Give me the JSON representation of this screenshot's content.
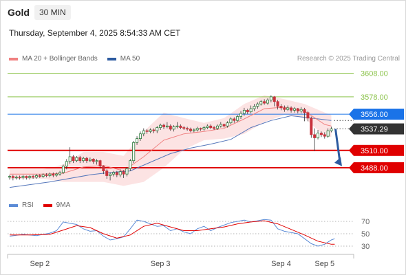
{
  "header": {
    "symbol": "Gold",
    "interval": "30 MIN",
    "datetime": "Thursday, September 4, 2025 8:54:33 AM CET"
  },
  "legend": {
    "items": [
      {
        "label": "MA 20 + Bollinger Bands",
        "color": "#f08080"
      },
      {
        "label": "MA 50",
        "color": "#2c5aa0"
      }
    ],
    "credit": "Research © 2025 Trading Central"
  },
  "rsi_legend": {
    "items": [
      {
        "label": "RSI",
        "color": "#5b8bd6"
      },
      {
        "label": "9MA",
        "color": "#e00000"
      }
    ]
  },
  "colors": {
    "target_green": "#8bc34a",
    "pivot_blue": "#1a73e8",
    "support_red": "#e00000",
    "candle_up": "#2a7a3a",
    "candle_down": "#c8323c",
    "bollinger_fill": "#fbdede",
    "ma20": "#f08080",
    "ma50": "#5577bb",
    "arrow": "#2c5aa0",
    "price_tag": "#333333"
  },
  "chart_data": {
    "type": "candlestick",
    "price_ylim": [
      3468,
      3630
    ],
    "levels": [
      {
        "value": 3608.0,
        "label": "3608.00",
        "kind": "resistance"
      },
      {
        "value": 3578.0,
        "label": "3578.00",
        "kind": "resistance"
      },
      {
        "value": 3556.0,
        "label": "3556.00",
        "kind": "pivot"
      },
      {
        "value": 3537.29,
        "label": "3537.29",
        "kind": "last"
      },
      {
        "value": 3510.0,
        "label": "3510.00",
        "kind": "support"
      },
      {
        "value": 3488.0,
        "label": "3488.00",
        "kind": "support"
      }
    ],
    "x_ticks": [
      "Sep 2",
      "Sep 3",
      "Sep 4",
      "Sep 5"
    ],
    "x_tick_bar_index": [
      9,
      45,
      81,
      94
    ],
    "candles": [
      [
        3476,
        3477,
        3475,
        3479,
        3473
      ],
      [
        3477,
        3475.5,
        3474,
        3479,
        3472
      ],
      [
        3475.5,
        3476,
        3474,
        3478,
        3473
      ],
      [
        3476,
        3475.5,
        3474.5,
        3478,
        3473
      ],
      [
        3475.5,
        3477,
        3475,
        3479,
        3473
      ],
      [
        3477,
        3475.5,
        3474,
        3478,
        3473
      ],
      [
        3475.5,
        3477,
        3474.5,
        3478.5,
        3473
      ],
      [
        3477,
        3476,
        3474.5,
        3479,
        3474
      ],
      [
        3476,
        3478,
        3475.5,
        3480,
        3474
      ],
      [
        3478,
        3477,
        3476,
        3480,
        3475
      ],
      [
        3477,
        3479,
        3476.5,
        3481,
        3475
      ],
      [
        3479,
        3478,
        3477,
        3481,
        3476
      ],
      [
        3478,
        3480,
        3477.5,
        3482,
        3476
      ],
      [
        3480,
        3478.5,
        3477.5,
        3482,
        3476
      ],
      [
        3478.5,
        3480,
        3478,
        3482,
        3476.5
      ],
      [
        3480,
        3482,
        3479,
        3484,
        3478
      ],
      [
        3482,
        3490,
        3481,
        3492,
        3480
      ],
      [
        3490,
        3496,
        3488,
        3499,
        3486
      ],
      [
        3496,
        3502,
        3495,
        3514,
        3493
      ],
      [
        3502,
        3497,
        3495,
        3504,
        3494
      ],
      [
        3497,
        3501,
        3496,
        3503,
        3495
      ],
      [
        3501,
        3497,
        3495.5,
        3503,
        3494
      ],
      [
        3497,
        3500,
        3496,
        3502,
        3494.5
      ],
      [
        3500,
        3497,
        3495.5,
        3502,
        3494
      ],
      [
        3497,
        3499,
        3496,
        3501,
        3495
      ],
      [
        3499,
        3496,
        3495,
        3500,
        3493
      ],
      [
        3496,
        3497,
        3494,
        3499,
        3492
      ],
      [
        3497,
        3490,
        3489,
        3498,
        3487
      ],
      [
        3490,
        3484,
        3482,
        3491,
        3480
      ],
      [
        3484,
        3478,
        3477,
        3486,
        3474
      ],
      [
        3478,
        3480,
        3477,
        3482,
        3472
      ],
      [
        3480,
        3482,
        3479,
        3484,
        3477
      ],
      [
        3482,
        3479,
        3477.5,
        3484,
        3476
      ],
      [
        3479,
        3483,
        3478,
        3486,
        3476
      ],
      [
        3483,
        3480,
        3477,
        3485,
        3475
      ],
      [
        3480,
        3487,
        3479,
        3489,
        3477
      ],
      [
        3487,
        3497,
        3486,
        3499,
        3484
      ],
      [
        3497,
        3520,
        3496,
        3522,
        3494
      ],
      [
        3520,
        3525,
        3519,
        3528,
        3517
      ],
      [
        3525,
        3531,
        3524,
        3534,
        3522
      ],
      [
        3531,
        3535,
        3530,
        3538,
        3528
      ],
      [
        3535,
        3534,
        3532,
        3537,
        3531
      ],
      [
        3534,
        3536,
        3533,
        3538,
        3532
      ],
      [
        3536,
        3535,
        3533.5,
        3538,
        3532
      ],
      [
        3535,
        3539,
        3534,
        3541,
        3532
      ],
      [
        3539,
        3542,
        3538,
        3544,
        3536
      ],
      [
        3542,
        3540,
        3538.5,
        3544,
        3537
      ],
      [
        3540,
        3541,
        3539,
        3546,
        3538
      ],
      [
        3541,
        3537,
        3536,
        3543,
        3535
      ],
      [
        3537,
        3540,
        3536,
        3542,
        3534
      ],
      [
        3540,
        3541,
        3539,
        3546,
        3538
      ],
      [
        3541,
        3539,
        3538,
        3543,
        3537
      ],
      [
        3539,
        3538,
        3537,
        3541,
        3536
      ],
      [
        3538,
        3537,
        3536,
        3540,
        3535
      ],
      [
        3537,
        3535,
        3534,
        3539,
        3533
      ],
      [
        3535,
        3536,
        3534,
        3538,
        3533
      ],
      [
        3536,
        3538,
        3535,
        3540,
        3534
      ],
      [
        3538,
        3537,
        3536,
        3539,
        3535
      ],
      [
        3537,
        3539,
        3536,
        3541,
        3535
      ],
      [
        3539,
        3541,
        3538,
        3543,
        3537
      ],
      [
        3541,
        3539,
        3538,
        3543,
        3537
      ],
      [
        3539,
        3538,
        3537,
        3541,
        3536
      ],
      [
        3538,
        3541,
        3537,
        3543,
        3536
      ],
      [
        3541,
        3543,
        3540,
        3546,
        3539
      ],
      [
        3543,
        3541,
        3540,
        3544,
        3539
      ],
      [
        3541,
        3545,
        3540,
        3547,
        3539
      ],
      [
        3545,
        3550,
        3544,
        3552,
        3543
      ],
      [
        3550,
        3548,
        3546,
        3552,
        3545
      ],
      [
        3548,
        3553,
        3547,
        3555,
        3546
      ],
      [
        3553,
        3557,
        3552,
        3560,
        3550
      ],
      [
        3557,
        3561,
        3555,
        3564,
        3554
      ],
      [
        3561,
        3559,
        3557,
        3563,
        3556
      ],
      [
        3559,
        3563,
        3558,
        3567,
        3557
      ],
      [
        3563,
        3566,
        3561,
        3569,
        3560
      ],
      [
        3566,
        3569,
        3565,
        3571,
        3563
      ],
      [
        3569,
        3572,
        3568,
        3574,
        3567
      ],
      [
        3572,
        3570,
        3569,
        3575,
        3568
      ],
      [
        3570,
        3574,
        3569,
        3576,
        3568
      ],
      [
        3574,
        3578,
        3573,
        3580,
        3571
      ],
      [
        3578,
        3572,
        3570,
        3579,
        3566
      ],
      [
        3572,
        3566,
        3564,
        3574,
        3562
      ],
      [
        3566,
        3564,
        3563,
        3569,
        3561
      ],
      [
        3564,
        3562,
        3561,
        3567,
        3559
      ],
      [
        3562,
        3564,
        3561,
        3567,
        3560
      ],
      [
        3564,
        3561,
        3560,
        3566,
        3558
      ],
      [
        3561,
        3563,
        3560,
        3565,
        3558
      ],
      [
        3563,
        3560,
        3559,
        3564,
        3557
      ],
      [
        3560,
        3562,
        3559,
        3565,
        3557
      ],
      [
        3562,
        3558,
        3549,
        3564,
        3547
      ],
      [
        3558,
        3551,
        3548,
        3560,
        3547
      ],
      [
        3551,
        3530,
        3528,
        3553,
        3526
      ],
      [
        3530,
        3526,
        3522,
        3538,
        3509
      ],
      [
        3526,
        3532,
        3525,
        3536,
        3524
      ],
      [
        3532,
        3530,
        3529,
        3534,
        3527
      ],
      [
        3530,
        3528,
        3527,
        3533,
        3525
      ],
      [
        3528,
        3535,
        3527,
        3538,
        3526
      ],
      [
        3535,
        3537.29,
        3534,
        3540,
        3533
      ]
    ],
    "ma20_points": [
      [
        0,
        3480
      ],
      [
        10,
        3480
      ],
      [
        16,
        3481
      ],
      [
        22,
        3489
      ],
      [
        28,
        3491
      ],
      [
        34,
        3484
      ],
      [
        40,
        3502
      ],
      [
        46,
        3523
      ],
      [
        52,
        3531
      ],
      [
        58,
        3534
      ],
      [
        64,
        3538
      ],
      [
        70,
        3550
      ],
      [
        76,
        3563
      ],
      [
        82,
        3565
      ],
      [
        88,
        3560
      ],
      [
        94,
        3543
      ],
      [
        96,
        3541
      ]
    ],
    "ma50_points": [
      [
        0,
        3463
      ],
      [
        12,
        3470
      ],
      [
        24,
        3479
      ],
      [
        30,
        3482
      ],
      [
        36,
        3484
      ],
      [
        42,
        3495
      ],
      [
        48,
        3506
      ],
      [
        54,
        3513
      ],
      [
        60,
        3518
      ],
      [
        66,
        3524
      ],
      [
        72,
        3539
      ],
      [
        78,
        3548
      ],
      [
        84,
        3554
      ],
      [
        90,
        3551
      ],
      [
        96,
        3548
      ]
    ],
    "bollinger_upper": [
      [
        0,
        3486
      ],
      [
        10,
        3486
      ],
      [
        16,
        3492
      ],
      [
        22,
        3508
      ],
      [
        28,
        3508
      ],
      [
        34,
        3503
      ],
      [
        40,
        3534
      ],
      [
        46,
        3558
      ],
      [
        52,
        3551
      ],
      [
        58,
        3545
      ],
      [
        64,
        3551
      ],
      [
        70,
        3569
      ],
      [
        76,
        3580
      ],
      [
        82,
        3575
      ],
      [
        88,
        3569
      ],
      [
        94,
        3558
      ],
      [
        96,
        3555
      ]
    ],
    "bollinger_lower": [
      [
        0,
        3474
      ],
      [
        10,
        3474
      ],
      [
        16,
        3470
      ],
      [
        22,
        3470
      ],
      [
        28,
        3470
      ],
      [
        34,
        3465
      ],
      [
        40,
        3470
      ],
      [
        46,
        3488
      ],
      [
        52,
        3511
      ],
      [
        58,
        3523
      ],
      [
        64,
        3525
      ],
      [
        70,
        3531
      ],
      [
        76,
        3546
      ],
      [
        82,
        3555
      ],
      [
        88,
        3551
      ],
      [
        94,
        3528
      ],
      [
        96,
        3527
      ]
    ],
    "forecast_arrow": {
      "from": [
        96,
        3537.29
      ],
      "to": [
        100,
        3490
      ]
    },
    "rsi": {
      "ylim": [
        20,
        82
      ],
      "levels": [
        70,
        50,
        30
      ],
      "rsi_points": [
        [
          0,
          46
        ],
        [
          4,
          49
        ],
        [
          8,
          47
        ],
        [
          12,
          51
        ],
        [
          14,
          55
        ],
        [
          16,
          69
        ],
        [
          18,
          67
        ],
        [
          20,
          65
        ],
        [
          22,
          58
        ],
        [
          24,
          54
        ],
        [
          26,
          55
        ],
        [
          28,
          46
        ],
        [
          30,
          40
        ],
        [
          32,
          42
        ],
        [
          34,
          45
        ],
        [
          36,
          58
        ],
        [
          38,
          72
        ],
        [
          40,
          70
        ],
        [
          42,
          66
        ],
        [
          44,
          62
        ],
        [
          46,
          63
        ],
        [
          48,
          55
        ],
        [
          50,
          58
        ],
        [
          52,
          53
        ],
        [
          54,
          50
        ],
        [
          56,
          58
        ],
        [
          58,
          62
        ],
        [
          60,
          55
        ],
        [
          62,
          60
        ],
        [
          64,
          64
        ],
        [
          66,
          68
        ],
        [
          68,
          70
        ],
        [
          70,
          72
        ],
        [
          72,
          69
        ],
        [
          74,
          71
        ],
        [
          76,
          73
        ],
        [
          78,
          72
        ],
        [
          80,
          58
        ],
        [
          82,
          54
        ],
        [
          84,
          52
        ],
        [
          86,
          50
        ],
        [
          88,
          42
        ],
        [
          90,
          34
        ],
        [
          92,
          30
        ],
        [
          94,
          33
        ],
        [
          96,
          40
        ],
        [
          97,
          42
        ]
      ],
      "ma_points": [
        [
          0,
          48
        ],
        [
          6,
          48
        ],
        [
          12,
          49
        ],
        [
          16,
          56
        ],
        [
          20,
          63
        ],
        [
          24,
          60
        ],
        [
          28,
          50
        ],
        [
          32,
          43
        ],
        [
          36,
          48
        ],
        [
          40,
          62
        ],
        [
          44,
          67
        ],
        [
          48,
          61
        ],
        [
          52,
          55
        ],
        [
          56,
          55
        ],
        [
          60,
          58
        ],
        [
          64,
          61
        ],
        [
          68,
          66
        ],
        [
          72,
          69
        ],
        [
          76,
          71
        ],
        [
          80,
          66
        ],
        [
          84,
          57
        ],
        [
          88,
          48
        ],
        [
          92,
          38
        ],
        [
          96,
          33
        ],
        [
          97,
          33
        ]
      ]
    }
  }
}
